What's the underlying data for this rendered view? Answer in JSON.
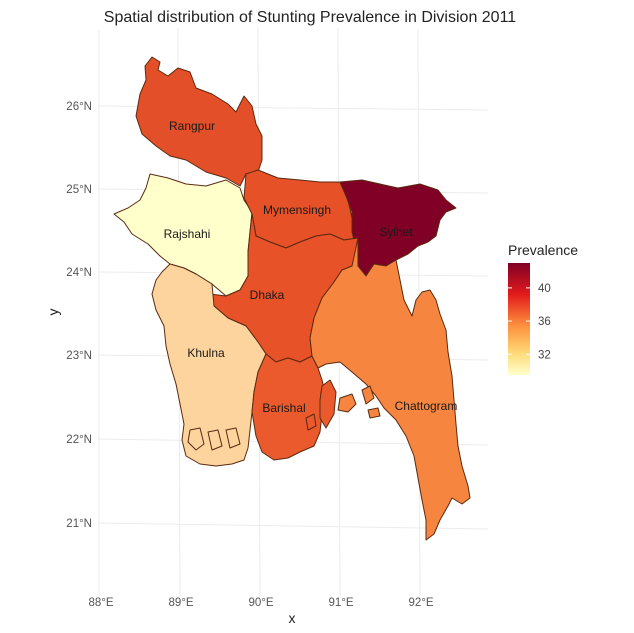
{
  "chart_data": {
    "type": "choropleth",
    "title": "Spatial distribution of Stunting Prevalence in Division 2011",
    "xlabel": "x",
    "ylabel": "y",
    "x_ticks": [
      "88°E",
      "89°E",
      "90°E",
      "91°E",
      "92°E"
    ],
    "y_ticks": [
      "21°N",
      "22°N",
      "23°N",
      "24°N",
      "25°N",
      "26°N"
    ],
    "legend": {
      "title": "Prevalence",
      "ticks": [
        "32",
        "36",
        "40"
      ],
      "tick_values": [
        32,
        36,
        40
      ],
      "range": [
        29.5,
        43
      ],
      "colors": [
        "#ffffcc",
        "#fed976",
        "#fd8d3c",
        "#e31a1c",
        "#800026"
      ]
    },
    "regions": [
      {
        "name": "Rangpur",
        "value": 39.5,
        "color": "#e34f28"
      },
      {
        "name": "Rajshahi",
        "value": 29.8,
        "color": "#ffffcc"
      },
      {
        "name": "Mymensingh",
        "value": 39.4,
        "color": "#e65128"
      },
      {
        "name": "Sylhet",
        "value": 42.9,
        "color": "#800026"
      },
      {
        "name": "Dhaka",
        "value": 39.3,
        "color": "#e85229"
      },
      {
        "name": "Khulna",
        "value": 31.0,
        "color": "#fdd49e"
      },
      {
        "name": "Barishal",
        "value": 38.6,
        "color": "#ea5a2c"
      },
      {
        "name": "Chattogram",
        "value": 37.2,
        "color": "#f6863f"
      }
    ]
  }
}
